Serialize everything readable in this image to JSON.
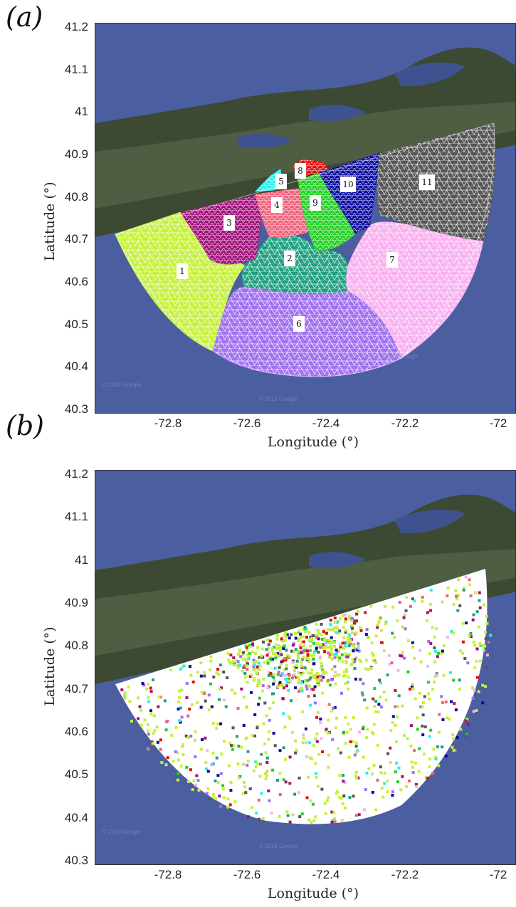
{
  "panels": [
    {
      "label": "(a)",
      "type": "partition",
      "y_ticks": [
        "41.2",
        "41.1",
        "41",
        "40.9",
        "40.8",
        "40.7",
        "40.6",
        "40.5",
        "40.4",
        "40.3"
      ],
      "x_ticks": [
        "-72.8",
        "-72.6",
        "-72.4",
        "-72.2",
        "-72"
      ],
      "xlabel": "Longitude (°)",
      "ylabel": "Latitude (°)",
      "regions": [
        {
          "id": "1",
          "color": "#c5f03c"
        },
        {
          "id": "2",
          "color": "#20a080"
        },
        {
          "id": "3",
          "color": "#a0107a"
        },
        {
          "id": "4",
          "color": "#f0607a"
        },
        {
          "id": "5",
          "color": "#20f0f0"
        },
        {
          "id": "6",
          "color": "#a070f0"
        },
        {
          "id": "7",
          "color": "#f8b0f0"
        },
        {
          "id": "8",
          "color": "#e01010"
        },
        {
          "id": "9",
          "color": "#20d020"
        },
        {
          "id": "10",
          "color": "#0a0aa0"
        },
        {
          "id": "11",
          "color": "#555555"
        }
      ]
    },
    {
      "label": "(b)",
      "type": "sensors",
      "y_ticks": [
        "41.2",
        "41.1",
        "41",
        "40.9",
        "40.8",
        "40.7",
        "40.6",
        "40.5",
        "40.4",
        "40.3"
      ],
      "x_ticks": [
        "-72.8",
        "-72.6",
        "-72.4",
        "-72.2",
        "-72"
      ],
      "xlabel": "Longitude (°)",
      "ylabel": "Latitude (°)"
    }
  ],
  "watermarks": [
    "© 2018 Google",
    "© 2018 Google",
    "© 2018 Google"
  ],
  "colors": {
    "ocean": "#4a5ea0",
    "ocean_dark": "#3f5290",
    "land": "#3c4a34",
    "land_light": "#5b6a4c",
    "domain_fill": "#ffffff"
  }
}
